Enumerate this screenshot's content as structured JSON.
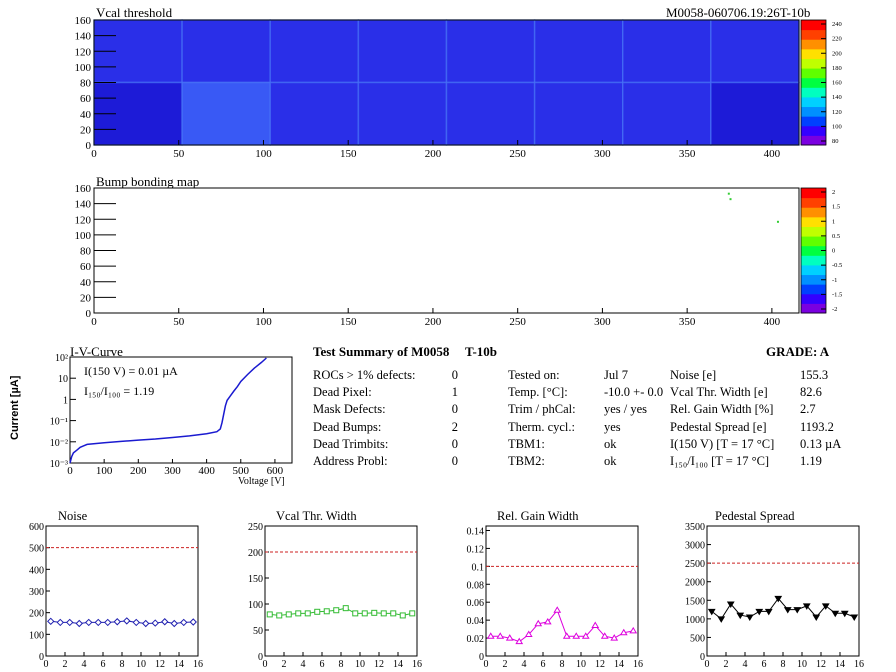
{
  "header": {
    "vcal_title": "Vcal threshold",
    "module_id": "M0058-060706.19:26T-10b"
  },
  "bump_title": "Bump bonding map",
  "colors": {
    "map_base": "#2a2fe8",
    "map_light": "#3a5cf5",
    "map_dark": "#1c1ad6",
    "iv_curve": "#1a1ad0",
    "noise": "#1f1fb0",
    "vcal_width": "#33bb33",
    "gain_width": "#dd00dd",
    "pedestal": "#000000",
    "limit_line": "#cc2222"
  },
  "heatmap_axes": {
    "x_ticks": [
      "0",
      "50",
      "100",
      "150",
      "200",
      "250",
      "300",
      "350",
      "400"
    ],
    "y_ticks": [
      "0",
      "20",
      "40",
      "60",
      "80",
      "100",
      "120",
      "140",
      "160"
    ],
    "xlim": [
      0,
      416
    ],
    "ylim": [
      0,
      160
    ]
  },
  "vcal_palette": [
    "240",
    "220",
    "200",
    "180",
    "160",
    "140",
    "120",
    "100",
    "80"
  ],
  "bump_palette": [
    "2",
    "1.5",
    "1",
    "0.5",
    "0",
    "-0.5",
    "-1",
    "-1.5",
    "-2"
  ],
  "iv": {
    "title": "I-V-Curve",
    "ylabel": "Current [µA]",
    "xlabel": "Voltage [V]",
    "legend1": "I(150 V) = 0.01 µA",
    "legend2": "I₁₅₀/I₁₀₀ =  1.19",
    "x_ticks": [
      "0",
      "100",
      "200",
      "300",
      "400",
      "500",
      "600"
    ],
    "y_ticks": [
      "10⁻³",
      "10⁻²",
      "10⁻¹",
      "1",
      "10",
      "10²"
    ]
  },
  "summary": {
    "title": "Test Summary of M0058",
    "config": "T-10b",
    "grade": "GRADE:  A",
    "defects": [
      {
        "label": "ROCs > 1% defects:",
        "value": "0"
      },
      {
        "label": "Dead Pixel:",
        "value": "1"
      },
      {
        "label": "Mask Defects:",
        "value": "0"
      },
      {
        "label": "Dead Bumps:",
        "value": "2"
      },
      {
        "label": "Dead Trimbits:",
        "value": "0"
      },
      {
        "label": "Address Probl:",
        "value": "0"
      }
    ],
    "conditions": [
      {
        "label": "Tested on:",
        "value": "Jul 7"
      },
      {
        "label": "Temp. [°C]:",
        "value": "-10.0 +- 0.0"
      },
      {
        "label": "Trim / phCal:",
        "value": "yes / yes"
      },
      {
        "label": "Therm. cycl.:",
        "value": "yes"
      },
      {
        "label": "TBM1:",
        "value": "ok"
      },
      {
        "label": "TBM2:",
        "value": "ok"
      }
    ],
    "results": [
      {
        "label": "Noise [e]",
        "value": "155.3"
      },
      {
        "label": "Vcal Thr. Width [e]",
        "value": "82.6"
      },
      {
        "label": "Rel. Gain Width [%]",
        "value": "2.7"
      },
      {
        "label": "Pedestal Spread [e]",
        "value": "1193.2"
      },
      {
        "label": "I(150 V) [T = 17 °C]",
        "value": "0.13 µA"
      },
      {
        "label": "I₁₅₀/I₁₀₀   [T = 17 °C]",
        "value": "1.19"
      }
    ]
  },
  "chart_data": [
    {
      "type": "heatmap",
      "title": "Vcal threshold",
      "xlim": [
        0,
        416
      ],
      "ylim": [
        0,
        160
      ],
      "zlim": [
        80,
        240
      ],
      "colorbar_ticks": [
        80,
        100,
        120,
        140,
        160,
        180,
        200,
        220,
        240
      ]
    },
    {
      "type": "scatter",
      "title": "Bump bonding map",
      "xlim": [
        0,
        416
      ],
      "ylim": [
        0,
        160
      ],
      "zlim": [
        -2,
        2
      ],
      "x": [
        374,
        375,
        403
      ],
      "y": [
        154,
        147,
        118
      ],
      "colorbar_ticks": [
        -2,
        -1.5,
        -1,
        -0.5,
        0,
        0.5,
        1,
        1.5,
        2
      ]
    },
    {
      "type": "line",
      "title": "I-V-Curve",
      "xlabel": "Voltage [V]",
      "ylabel": "Current [µA]",
      "xlim": [
        0,
        650
      ],
      "ylim": [
        0.001,
        100
      ],
      "yscale": "log",
      "x": [
        0,
        5,
        10,
        20,
        30,
        40,
        50,
        100,
        150,
        200,
        250,
        300,
        350,
        400,
        430,
        440,
        445,
        450,
        455,
        460,
        470,
        480,
        490,
        500,
        520,
        540,
        560,
        575
      ],
      "y": [
        0.001,
        0.002,
        0.003,
        0.004,
        0.0055,
        0.0065,
        0.0075,
        0.009,
        0.0105,
        0.012,
        0.0135,
        0.016,
        0.019,
        0.024,
        0.03,
        0.04,
        0.08,
        0.2,
        0.5,
        0.9,
        1.5,
        2.5,
        4,
        7,
        15,
        30,
        55,
        90
      ]
    },
    {
      "type": "line",
      "title": "Noise",
      "x": [
        0,
        1,
        2,
        3,
        4,
        5,
        6,
        7,
        8,
        9,
        10,
        11,
        12,
        13,
        14,
        15
      ],
      "y": [
        160,
        155,
        155,
        150,
        155,
        155,
        155,
        158,
        162,
        155,
        150,
        152,
        158,
        150,
        155,
        157
      ],
      "limit": 500,
      "xlim": [
        0,
        16
      ],
      "ylim": [
        0,
        600
      ],
      "y_ticks": [
        0,
        100,
        200,
        300,
        400,
        500,
        600
      ],
      "x_ticks": [
        0,
        2,
        4,
        6,
        8,
        10,
        12,
        14,
        16
      ]
    },
    {
      "type": "line",
      "title": "Vcal Thr. Width",
      "x": [
        0,
        1,
        2,
        3,
        4,
        5,
        6,
        7,
        8,
        9,
        10,
        11,
        12,
        13,
        14,
        15
      ],
      "y": [
        80,
        78,
        80,
        82,
        82,
        85,
        86,
        88,
        92,
        82,
        82,
        83,
        82,
        82,
        78,
        82
      ],
      "limit": 200,
      "xlim": [
        0,
        16
      ],
      "ylim": [
        0,
        250
      ],
      "y_ticks": [
        0,
        50,
        100,
        150,
        200,
        250
      ],
      "x_ticks": [
        0,
        2,
        4,
        6,
        8,
        10,
        12,
        14,
        16
      ]
    },
    {
      "type": "line",
      "title": "Rel. Gain Width",
      "x": [
        0,
        1,
        2,
        3,
        4,
        5,
        6,
        7,
        8,
        9,
        10,
        11,
        12,
        13,
        14,
        15
      ],
      "y": [
        0.022,
        0.022,
        0.02,
        0.016,
        0.024,
        0.036,
        0.038,
        0.051,
        0.022,
        0.022,
        0.022,
        0.034,
        0.022,
        0.02,
        0.026,
        0.028
      ],
      "limit": 0.1,
      "xlim": [
        0,
        16
      ],
      "ylim": [
        0,
        0.145
      ],
      "y_ticks": [
        0,
        0.02,
        0.04,
        0.06,
        0.08,
        0.1,
        0.12,
        0.14
      ],
      "x_ticks": [
        0,
        2,
        4,
        6,
        8,
        10,
        12,
        14,
        16
      ]
    },
    {
      "type": "line",
      "title": "Pedestal Spread",
      "x": [
        0,
        1,
        2,
        3,
        4,
        5,
        6,
        7,
        8,
        9,
        10,
        11,
        12,
        13,
        14,
        15
      ],
      "y": [
        1200,
        1000,
        1400,
        1100,
        1050,
        1200,
        1200,
        1550,
        1250,
        1250,
        1350,
        1050,
        1350,
        1150,
        1150,
        1050
      ],
      "limit": 2500,
      "xlim": [
        0,
        16
      ],
      "ylim": [
        0,
        3500
      ],
      "y_ticks": [
        0,
        500,
        1000,
        1500,
        2000,
        2500,
        3000,
        3500
      ],
      "x_ticks": [
        0,
        2,
        4,
        6,
        8,
        10,
        12,
        14,
        16
      ]
    }
  ]
}
